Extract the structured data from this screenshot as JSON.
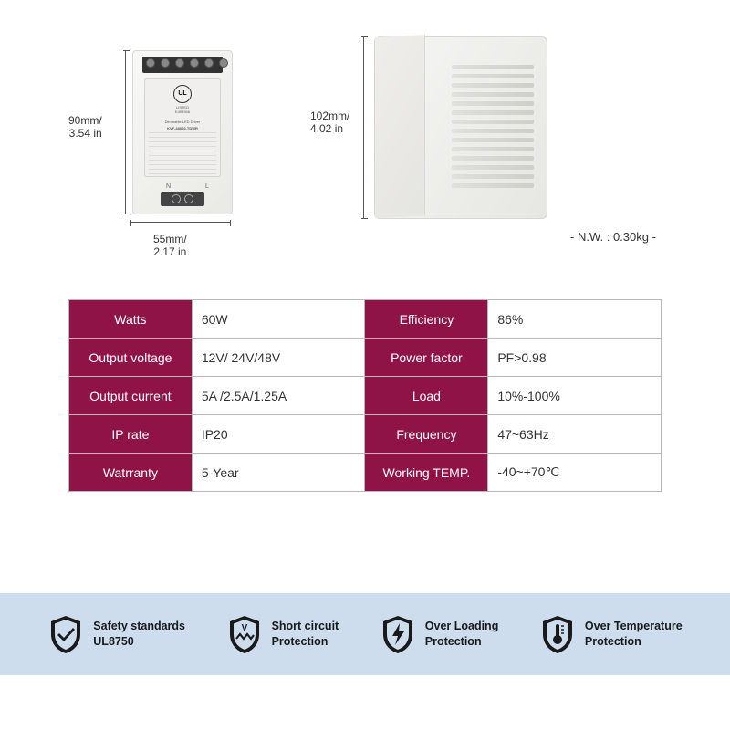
{
  "dimensions": {
    "front_height_mm": "90mm/",
    "front_height_in": "3.54 in",
    "front_width_mm": "55mm/",
    "front_width_in": "2.17 in",
    "side_height_mm": "102mm/",
    "side_height_in": "4.02 in",
    "net_weight": "-  N.W. : 0.30kg  -"
  },
  "product_label": {
    "ul_text": "UL",
    "listed": "LISTED",
    "code": "E495946",
    "driver": "Dimmable LED Driver",
    "model": "KVF-48060-TDWR",
    "nl": "N   L"
  },
  "specs": {
    "rows": [
      {
        "l1": "Watts",
        "v1": "60W",
        "l2": "Efficiency",
        "v2": "86%"
      },
      {
        "l1": "Output voltage",
        "v1": "12V/ 24V/48V",
        "l2": "Power factor",
        "v2": "PF>0.98"
      },
      {
        "l1": "Output current",
        "v1": "5A /2.5A/1.25A",
        "l2": "Load",
        "v2": "10%-100%"
      },
      {
        "l1": "IP rate",
        "v1": "IP20",
        "l2": "Frequency",
        "v2": "47~63Hz"
      },
      {
        "l1": "Watrranty",
        "v1": "5-Year",
        "l2": "Working TEMP.",
        "v2": "-40~+70℃"
      }
    ],
    "header_bg": "#8f1346",
    "header_fg": "#ffffff",
    "border_color": "#b8b8b8"
  },
  "features": {
    "bg": "#cdddee",
    "icon_fill": "#1a1a1a",
    "items": [
      {
        "icon": "shield-check",
        "line1": "Safety standards",
        "line2": "UL8750"
      },
      {
        "icon": "shield-zigzag",
        "line1": "Short circuit",
        "line2": "Protection"
      },
      {
        "icon": "shield-bolt",
        "line1": "Over Loading",
        "line2": "Protection"
      },
      {
        "icon": "shield-thermo",
        "line1": "Over Temperature",
        "line2": "Protection"
      }
    ]
  }
}
